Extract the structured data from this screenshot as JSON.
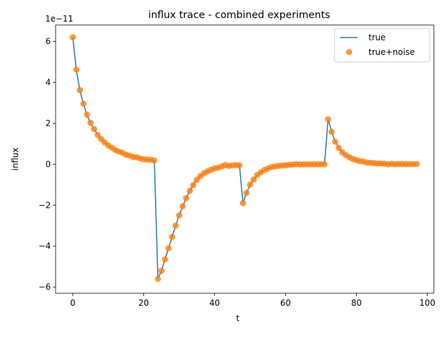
{
  "chart_data": {
    "type": "line",
    "title": "influx trace - combined experiments",
    "xlabel": "t",
    "ylabel": "influx",
    "y_scale_label": "1e−11",
    "xlim": [
      -4.85,
      101.85
    ],
    "ylim": [
      -6.3,
      6.8
    ],
    "x_ticks": [
      0,
      20,
      40,
      60,
      80,
      100
    ],
    "x_tick_labels": [
      "0",
      "20",
      "40",
      "60",
      "80",
      "100"
    ],
    "y_ticks": [
      -6,
      -4,
      -2,
      0,
      2,
      4,
      6
    ],
    "y_tick_labels": [
      "−6",
      "−4",
      "−2",
      "0",
      "2",
      "4",
      "6"
    ],
    "grid": false,
    "legend": "top-right",
    "series": [
      {
        "name": "true",
        "style": "line",
        "color": "#1f77b4",
        "x": [
          0,
          1,
          2,
          3,
          4,
          5,
          6,
          7,
          8,
          9,
          10,
          11,
          12,
          13,
          14,
          15,
          16,
          17,
          18,
          19,
          20,
          21,
          22,
          23,
          24,
          25,
          26,
          27,
          28,
          29,
          30,
          31,
          32,
          33,
          34,
          35,
          36,
          37,
          38,
          39,
          40,
          41,
          42,
          43,
          44,
          45,
          46,
          47,
          48,
          49,
          50,
          51,
          52,
          53,
          54,
          55,
          56,
          57,
          58,
          59,
          60,
          61,
          62,
          63,
          64,
          65,
          66,
          67,
          68,
          69,
          70,
          71,
          72,
          73,
          74,
          75,
          76,
          77,
          78,
          79,
          80,
          81,
          82,
          83,
          84,
          85,
          86,
          87,
          88,
          89,
          90,
          91,
          92,
          93,
          94,
          95,
          96,
          97
        ],
        "y": [
          6.2,
          4.6,
          3.6,
          2.95,
          2.4,
          2.0,
          1.72,
          1.45,
          1.22,
          1.05,
          0.92,
          0.8,
          0.7,
          0.62,
          0.55,
          0.48,
          0.42,
          0.37,
          0.33,
          0.29,
          0.25,
          0.23,
          0.21,
          0.19,
          -5.6,
          -5.2,
          -4.65,
          -4.1,
          -3.55,
          -3.0,
          -2.5,
          -2.05,
          -1.65,
          -1.3,
          -1.0,
          -0.75,
          -0.58,
          -0.45,
          -0.35,
          -0.27,
          -0.21,
          -0.16,
          -0.12,
          -0.09,
          -0.07,
          -0.05,
          -0.04,
          -0.03,
          -1.9,
          -1.4,
          -1.0,
          -0.75,
          -0.55,
          -0.4,
          -0.29,
          -0.21,
          -0.15,
          -0.11,
          -0.08,
          -0.06,
          -0.04,
          -0.03,
          -0.02,
          -0.015,
          -0.01,
          -0.008,
          -0.006,
          -0.005,
          -0.004,
          -0.003,
          -0.002,
          -0.002,
          2.2,
          1.6,
          1.12,
          0.82,
          0.6,
          0.45,
          0.34,
          0.26,
          0.2,
          0.15,
          0.12,
          0.09,
          0.07,
          0.05,
          0.04,
          0.03,
          0.025,
          0.02,
          0.015,
          0.012,
          0.01,
          0.008,
          0.006,
          0.005,
          0.004,
          0.003
        ]
      },
      {
        "name": "true+noise",
        "style": "scatter",
        "color": "#ff7f0e",
        "x": [
          0,
          1,
          2,
          3,
          4,
          5,
          6,
          7,
          8,
          9,
          10,
          11,
          12,
          13,
          14,
          15,
          16,
          17,
          18,
          19,
          20,
          21,
          22,
          23,
          24,
          25,
          26,
          27,
          28,
          29,
          30,
          31,
          32,
          33,
          34,
          35,
          36,
          37,
          38,
          39,
          40,
          41,
          42,
          43,
          44,
          45,
          46,
          47,
          48,
          49,
          50,
          51,
          52,
          53,
          54,
          55,
          56,
          57,
          58,
          59,
          60,
          61,
          62,
          63,
          64,
          65,
          66,
          67,
          68,
          69,
          70,
          71,
          72,
          73,
          74,
          75,
          76,
          77,
          78,
          79,
          80,
          81,
          82,
          83,
          84,
          85,
          86,
          87,
          88,
          89,
          90,
          91,
          92,
          93,
          94,
          95,
          96,
          97
        ],
        "y": [
          6.2,
          4.62,
          3.62,
          2.96,
          2.42,
          2.02,
          1.72,
          1.43,
          1.23,
          1.06,
          0.92,
          0.81,
          0.69,
          0.62,
          0.56,
          0.47,
          0.42,
          0.36,
          0.34,
          0.28,
          0.24,
          0.23,
          0.22,
          0.18,
          -5.6,
          -5.2,
          -4.65,
          -4.1,
          -3.55,
          -3.0,
          -2.5,
          -2.05,
          -1.66,
          -1.3,
          -1.02,
          -0.76,
          -0.58,
          -0.44,
          -0.35,
          -0.27,
          -0.2,
          -0.17,
          -0.11,
          -0.04,
          -0.08,
          -0.06,
          -0.04,
          -0.05,
          -1.9,
          -1.4,
          -1.0,
          -0.75,
          -0.53,
          -0.4,
          -0.28,
          -0.21,
          -0.14,
          -0.11,
          -0.08,
          -0.06,
          -0.05,
          -0.03,
          -0.02,
          0.0,
          -0.01,
          -0.008,
          -0.006,
          -0.005,
          -0.004,
          -0.003,
          -0.002,
          -0.003,
          2.2,
          1.58,
          1.1,
          0.8,
          0.58,
          0.45,
          0.34,
          0.25,
          0.2,
          0.15,
          0.13,
          0.08,
          0.07,
          0.05,
          0.04,
          0.04,
          0.025,
          0.0,
          0.015,
          0.0,
          0.01,
          0.008,
          0.0,
          0.005,
          0.004,
          0.01
        ]
      }
    ]
  }
}
